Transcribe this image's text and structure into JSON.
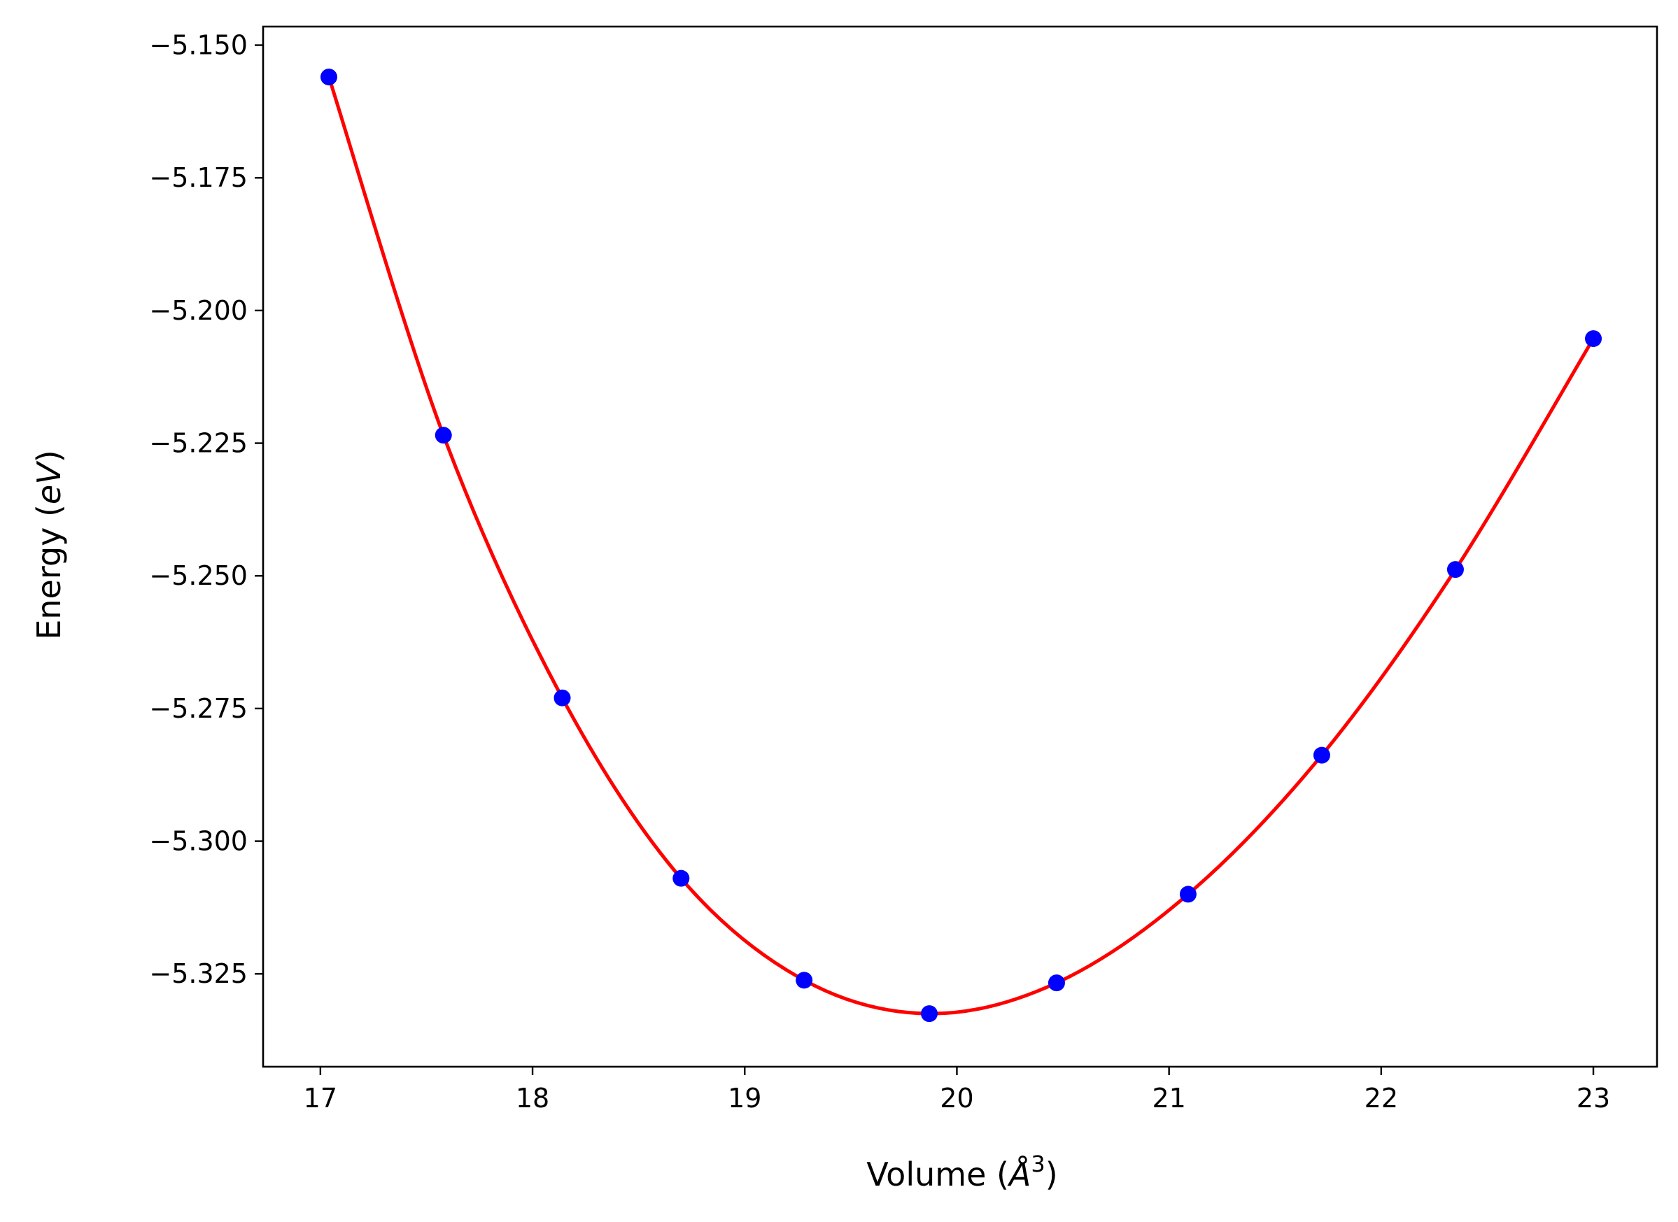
{
  "chart_data": {
    "type": "scatter",
    "title": "",
    "xlabel": {
      "prefix": "Volume (",
      "symbol": "Å",
      "superscript": "3",
      "suffix": ")"
    },
    "ylabel": {
      "prefix": "Energy (",
      "unit": "eV",
      "suffix": ")"
    },
    "xlim": [
      16.73,
      23.3
    ],
    "ylim": [
      -5.3425,
      -5.1465
    ],
    "xticks": [
      17,
      18,
      19,
      20,
      21,
      22,
      23
    ],
    "xtick_labels": [
      "17",
      "18",
      "19",
      "20",
      "21",
      "22",
      "23"
    ],
    "yticks": [
      -5.15,
      -5.175,
      -5.2,
      -5.225,
      -5.25,
      -5.275,
      -5.3,
      -5.325
    ],
    "ytick_labels": [
      "−5.150",
      "−5.175",
      "−5.200",
      "−5.225",
      "−5.250",
      "−5.275",
      "−5.300",
      "−5.325"
    ],
    "grid": false,
    "series": [
      {
        "kind": "points",
        "color": "#0000ff",
        "x": [
          17.04,
          17.58,
          18.14,
          18.7,
          19.28,
          19.87,
          20.47,
          21.09,
          21.72,
          22.35,
          23.0
        ],
        "y": [
          -5.156,
          -5.2235,
          -5.273,
          -5.307,
          -5.3262,
          -5.3325,
          -5.3267,
          -5.31,
          -5.2838,
          -5.2488,
          -5.2053
        ]
      },
      {
        "kind": "fit-line",
        "color": "#ff0000",
        "x": [
          17.04,
          17.58,
          18.14,
          18.7,
          19.28,
          19.87,
          20.47,
          21.09,
          21.72,
          22.35,
          23.0
        ],
        "y": [
          -5.156,
          -5.2235,
          -5.273,
          -5.307,
          -5.3262,
          -5.3325,
          -5.3267,
          -5.31,
          -5.2838,
          -5.2488,
          -5.2053
        ]
      }
    ]
  }
}
